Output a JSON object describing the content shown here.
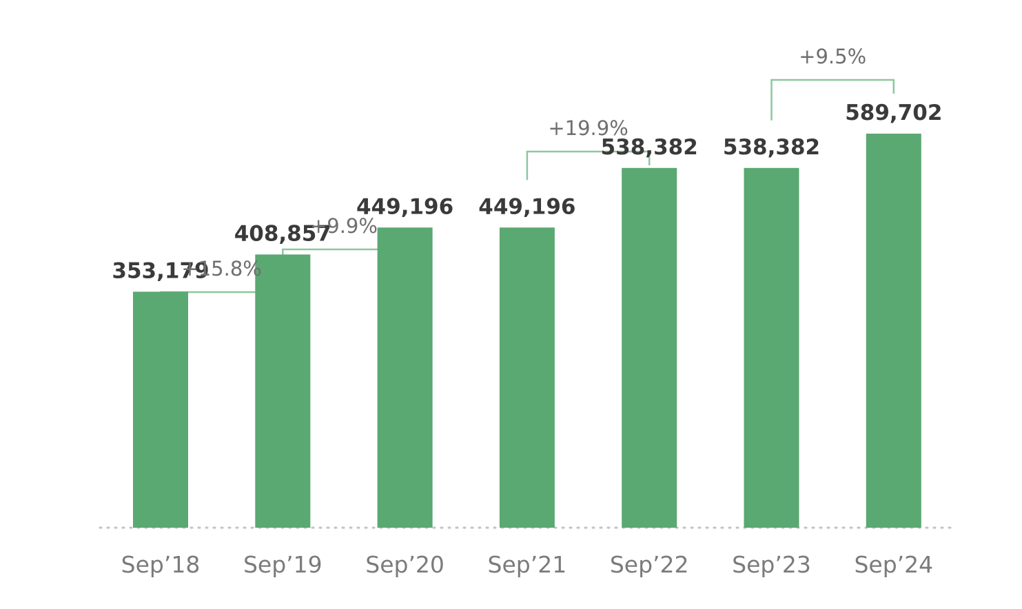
{
  "chart_data": {
    "type": "bar",
    "title": "",
    "xlabel": "",
    "ylabel": "",
    "categories": [
      "Sep’18",
      "Sep’19",
      "Sep’20",
      "Sep’21",
      "Sep’22",
      "Sep’23",
      "Sep’24"
    ],
    "values": [
      353179,
      408857,
      449196,
      449196,
      538382,
      538382,
      589702
    ],
    "value_labels": [
      "353,179",
      "408,857",
      "449,196",
      "449,196",
      "538,382",
      "538,382",
      "589,702"
    ],
    "ylim": [
      0,
      600000
    ],
    "grid": false,
    "legend": "none",
    "bar_color": "#5aa872",
    "bracket_color": "#8cc79e",
    "baseline_color": "#c2c2c2",
    "annotations": [
      {
        "from": 0,
        "to": 1,
        "label": "+15.8%"
      },
      {
        "from": 1,
        "to": 2,
        "label": "+9.9%"
      },
      {
        "from": 3,
        "to": 4,
        "label": "+19.9%"
      },
      {
        "from": 5,
        "to": 6,
        "label": "+9.5%"
      }
    ]
  }
}
